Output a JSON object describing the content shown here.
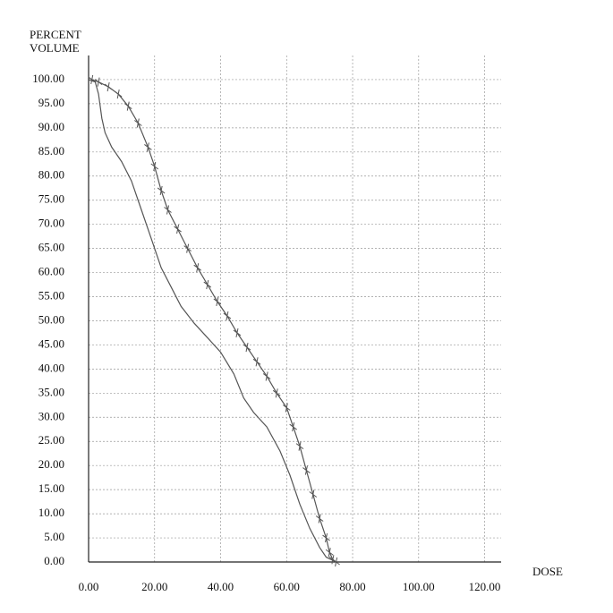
{
  "chart_data": {
    "type": "line",
    "y_label": [
      "PERCENT",
      "VOLUME"
    ],
    "x_label": "DOSE",
    "xlim": [
      0,
      125
    ],
    "ylim": [
      0,
      105
    ],
    "xticks": [
      {
        "value": 0,
        "label": "0.00"
      },
      {
        "value": 20,
        "label": "20.00"
      },
      {
        "value": 40,
        "label": "40.00"
      },
      {
        "value": 60,
        "label": "60.00"
      },
      {
        "value": 80,
        "label": "80.00"
      },
      {
        "value": 100,
        "label": "100.00"
      },
      {
        "value": 120,
        "label": "120.00"
      }
    ],
    "yticks": [
      {
        "value": 0,
        "label": "0.00"
      },
      {
        "value": 5,
        "label": "5.00"
      },
      {
        "value": 10,
        "label": "10.00"
      },
      {
        "value": 15,
        "label": "15.00"
      },
      {
        "value": 20,
        "label": "20.00"
      },
      {
        "value": 25,
        "label": "25.00"
      },
      {
        "value": 30,
        "label": "30.00"
      },
      {
        "value": 35,
        "label": "35.00"
      },
      {
        "value": 40,
        "label": "40.00"
      },
      {
        "value": 45,
        "label": "45.00"
      },
      {
        "value": 50,
        "label": "50.00"
      },
      {
        "value": 55,
        "label": "55.00"
      },
      {
        "value": 60,
        "label": "60.00"
      },
      {
        "value": 65,
        "label": "65.00"
      },
      {
        "value": 70,
        "label": "70.00"
      },
      {
        "value": 75,
        "label": "75.00"
      },
      {
        "value": 80,
        "label": "80.00"
      },
      {
        "value": 85,
        "label": "85.00"
      },
      {
        "value": 90,
        "label": "90.00"
      },
      {
        "value": 95,
        "label": "95.00"
      },
      {
        "value": 100,
        "label": "100.00"
      }
    ],
    "grid": true,
    "series": [
      {
        "color": "#555555",
        "marker": "none",
        "x": [
          0,
          2,
          3,
          4,
          5,
          7,
          10,
          13,
          16,
          19,
          22,
          25,
          28,
          32,
          36,
          40,
          44,
          47,
          50,
          54,
          58,
          61,
          64,
          67,
          70,
          72,
          75
        ],
        "values": [
          100,
          99.5,
          97,
          92,
          89,
          86,
          83,
          79,
          73,
          67,
          61,
          57,
          53,
          49.5,
          46.5,
          43.5,
          39,
          34,
          31,
          28,
          23,
          18,
          12,
          7,
          3,
          1,
          0
        ]
      },
      {
        "color": "#555555",
        "marker": "cross",
        "x": [
          1,
          3,
          6,
          9,
          12,
          15,
          18,
          20,
          22,
          24,
          27,
          30,
          33,
          36,
          39,
          42,
          45,
          48,
          51,
          54,
          57,
          60,
          62,
          64,
          66,
          68,
          70,
          72,
          73,
          74,
          75
        ],
        "values": [
          100,
          99.5,
          98.5,
          97,
          94.5,
          91,
          86,
          82,
          77,
          73,
          69,
          65,
          61,
          57.5,
          54,
          51,
          47.5,
          44.5,
          41.5,
          38.5,
          35,
          32,
          28,
          24,
          19,
          14,
          9,
          5,
          2,
          0.5,
          0
        ]
      }
    ]
  }
}
